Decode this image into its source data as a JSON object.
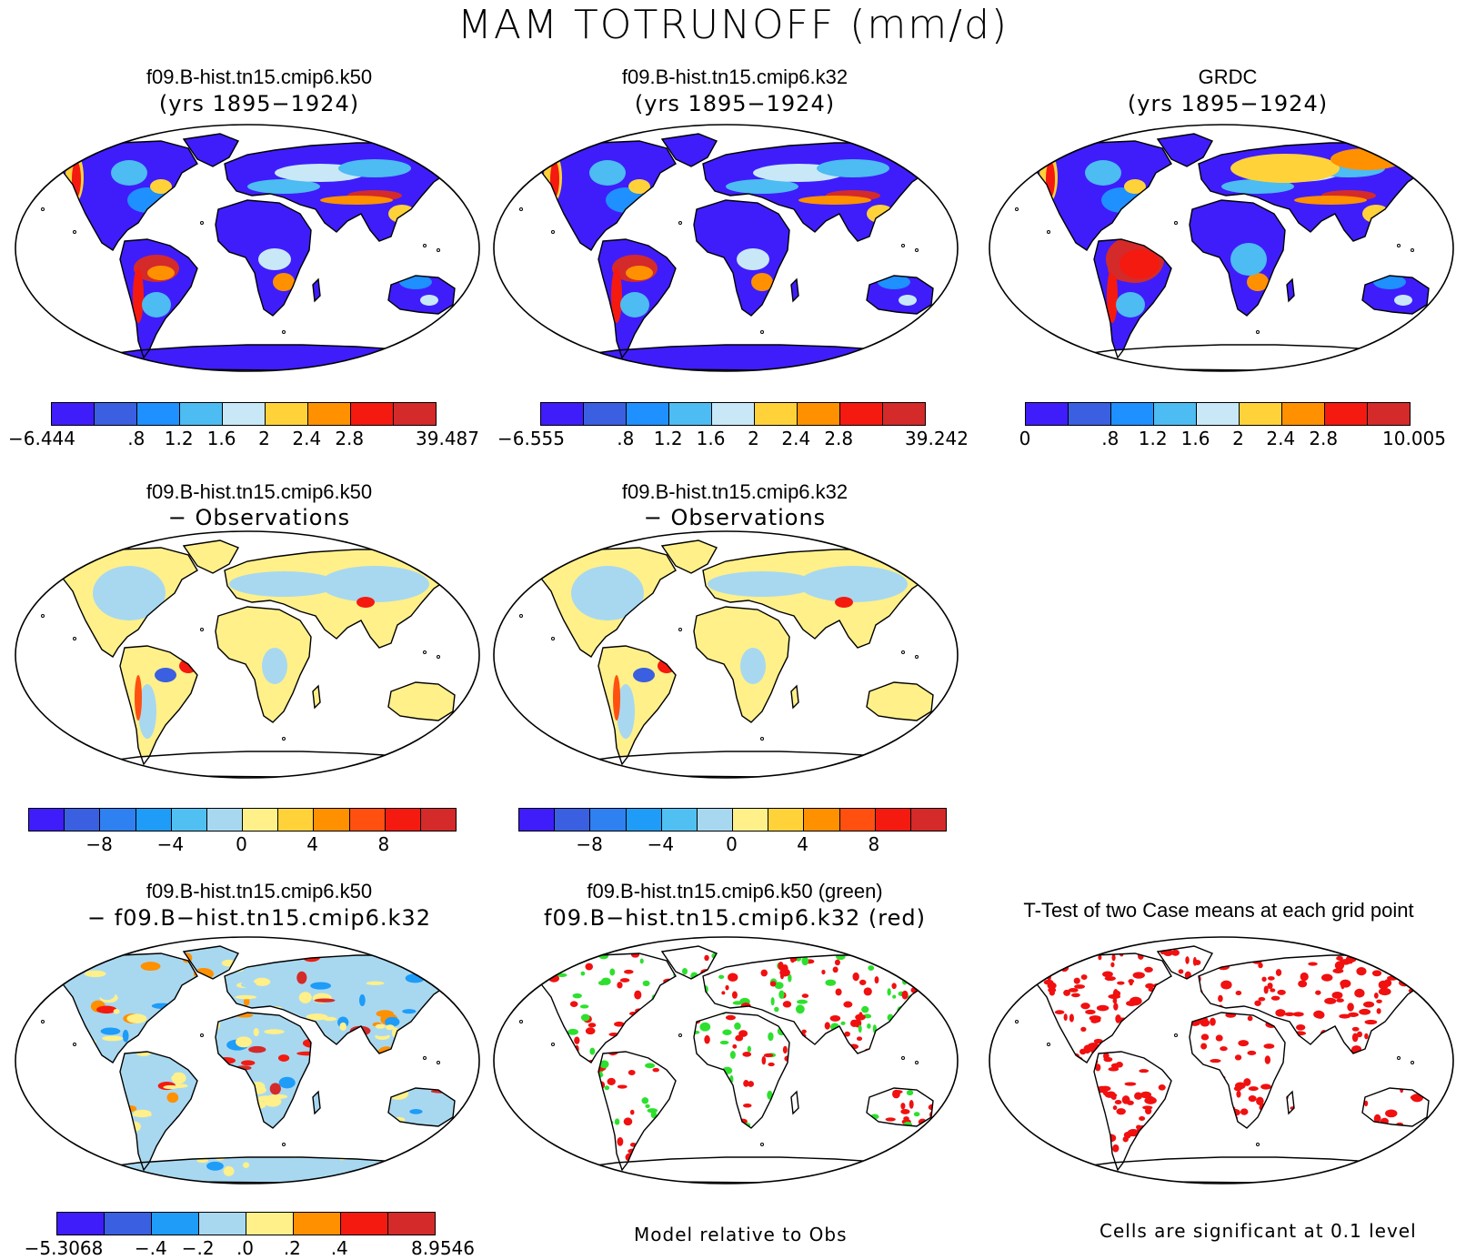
{
  "title": "MAM TOTRUNOFF (mm/d)",
  "colors": {
    "ocean": "#ffffff",
    "abs_scale": [
      "#3f1dfa",
      "#3a5fe0",
      "#1e90ff",
      "#4cbcf2",
      "#c8e8f8",
      "#ffd23a",
      "#ff9000",
      "#f41a10",
      "#d42a2a"
    ],
    "diff_scale": [
      "#3f1dfa",
      "#3a5fe0",
      "#2f80f0",
      "#1e9cf8",
      "#50c0f2",
      "#a8d8f0",
      "#fff08a",
      "#ffd23a",
      "#ff9000",
      "#ff5010",
      "#f41a10",
      "#d42a2a"
    ],
    "diff2_scale": [
      "#3f1dfa",
      "#3a5fe0",
      "#1e9cf8",
      "#a8d8f0",
      "#fff08a",
      "#ff9000",
      "#f41a10",
      "#d42a2a"
    ],
    "sig_green": "#2ee02e",
    "sig_red": "#f01010"
  },
  "panels": {
    "p1": {
      "line1": "f09.B-hist.tn15.cmip6.k50",
      "line2": "(yrs 1895−1924)",
      "ticks": [
        "−6.444",
        ".8",
        "1.2",
        "1.6",
        "2",
        "2.4",
        "2.8",
        "39.487"
      ]
    },
    "p2": {
      "line1": "f09.B-hist.tn15.cmip6.k32",
      "line2": "(yrs 1895−1924)",
      "ticks": [
        "−6.555",
        ".8",
        "1.2",
        "1.6",
        "2",
        "2.4",
        "2.8",
        "39.242"
      ]
    },
    "p3": {
      "line1": "GRDC",
      "line2": "(yrs 1895−1924)",
      "ticks": [
        "0",
        ".8",
        "1.2",
        "1.6",
        "2",
        "2.4",
        "2.8",
        "10.005"
      ]
    },
    "p4": {
      "line1": "f09.B-hist.tn15.cmip6.k50",
      "line2": "− Observations",
      "ticks": [
        "−8",
        "−4",
        "0",
        "4",
        "8"
      ]
    },
    "p5": {
      "line1": "f09.B-hist.tn15.cmip6.k32",
      "line2": "− Observations",
      "ticks": [
        "−8",
        "−4",
        "0",
        "4",
        "8"
      ]
    },
    "p7": {
      "line1": "f09.B-hist.tn15.cmip6.k50",
      "line2": "− f09.B−hist.tn15.cmip6.k32",
      "ticks": [
        "−5.3068",
        "−.4",
        "−.2",
        ".0",
        ".2",
        ".4",
        "8.9546"
      ]
    },
    "p8": {
      "line1": "f09.B-hist.tn15.cmip6.k50 (green)",
      "line2": "f09.B−hist.tn15.cmip6.k32 (red)",
      "note": "Model relative to Obs"
    },
    "p9": {
      "line1": "T-Test of two Case means at each grid point",
      "note": "Cells are significant at 0.1 level"
    }
  }
}
